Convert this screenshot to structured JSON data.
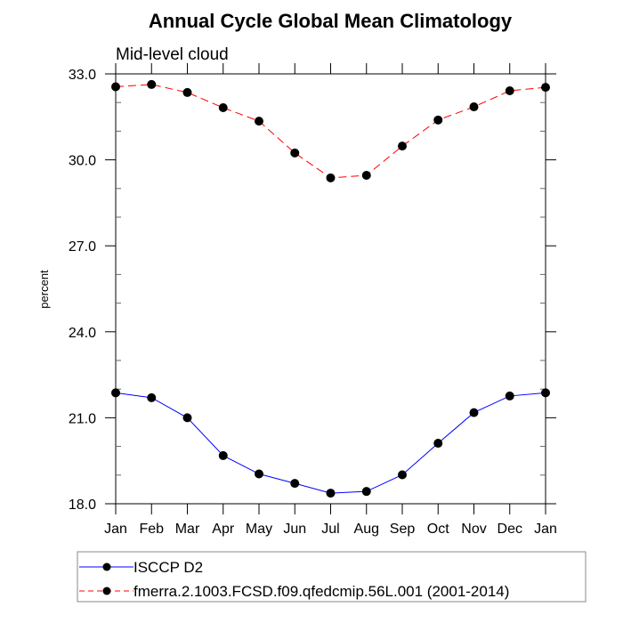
{
  "chart_data": {
    "type": "line",
    "title": "Annual Cycle Global Mean Climatology",
    "subtitle": "Mid-level cloud",
    "xlabel": "",
    "ylabel": "percent",
    "categories": [
      "Jan",
      "Feb",
      "Mar",
      "Apr",
      "May",
      "Jun",
      "Jul",
      "Aug",
      "Sep",
      "Oct",
      "Nov",
      "Dec",
      "Jan"
    ],
    "ylim": [
      18.0,
      33.0
    ],
    "yticks": [
      18.0,
      21.0,
      24.0,
      27.0,
      30.0,
      33.0
    ],
    "ytick_labels": [
      "18.0",
      "21.0",
      "24.0",
      "27.0",
      "30.0",
      "33.0"
    ],
    "y_minor_step": 1.0,
    "grid": false,
    "legend_position": "bottom",
    "series": [
      {
        "name": "ISCCP D2",
        "color": "#0000ff",
        "line_style": "solid",
        "marker": "filled-circle",
        "marker_color": "#000000",
        "values": [
          21.87,
          21.7,
          21.0,
          19.68,
          19.04,
          18.71,
          18.37,
          18.43,
          19.01,
          20.11,
          21.18,
          21.76,
          21.87
        ]
      },
      {
        "name": "fmerra.2.1003.FCSD.f09.qfedcmip.56L.001 (2001-2014)",
        "color": "#ff0000",
        "line_style": "dashed",
        "marker": "filled-circle",
        "marker_color": "#000000",
        "values": [
          32.55,
          32.63,
          32.35,
          31.82,
          31.35,
          30.24,
          29.37,
          29.46,
          30.48,
          31.39,
          31.85,
          32.41,
          32.53
        ]
      }
    ]
  }
}
